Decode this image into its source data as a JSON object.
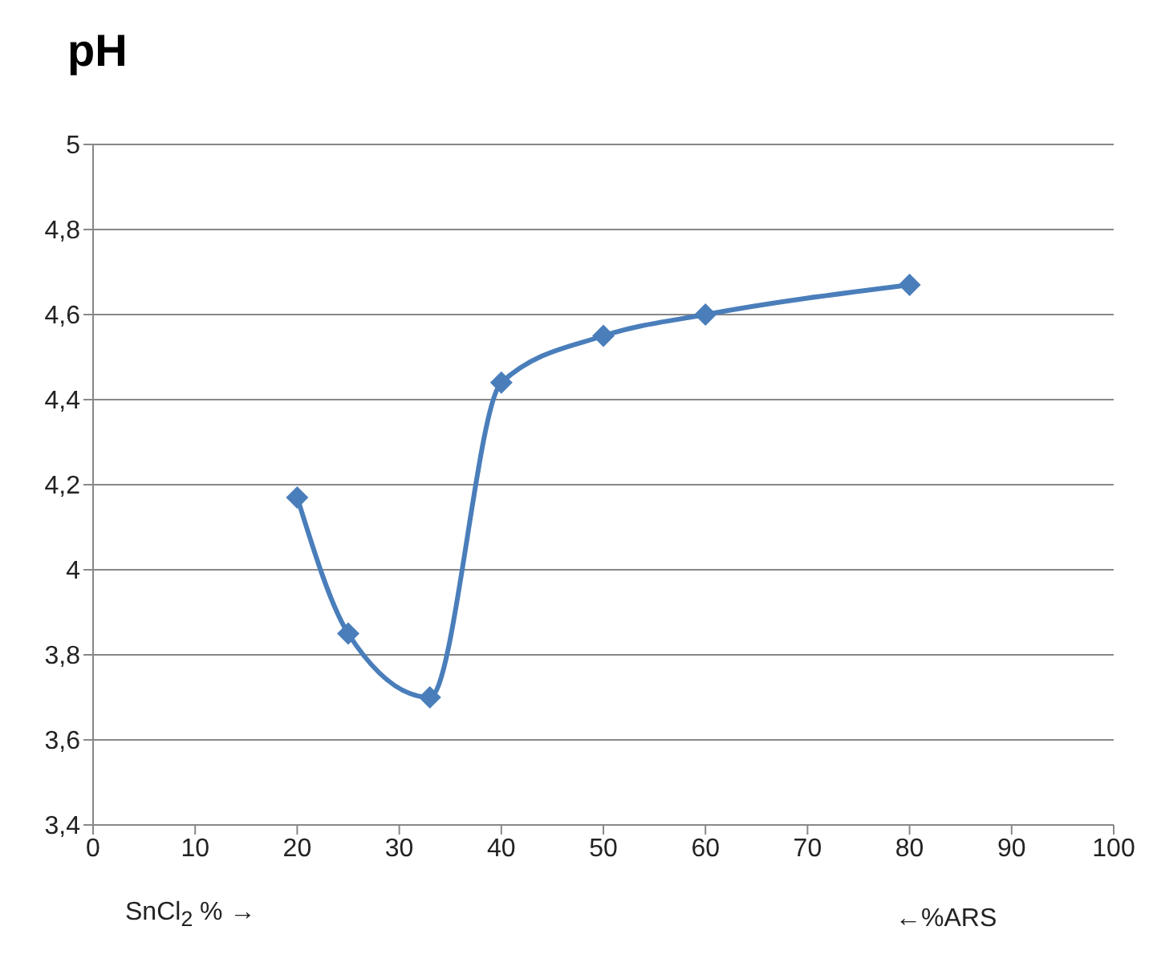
{
  "chart_data": {
    "type": "line",
    "ylabel": "pH",
    "xlabel": "SnCl$_{2}$ % →",
    "annotations": [
      "←%ARS"
    ],
    "x": [
      20,
      25,
      33,
      40,
      50,
      60,
      80
    ],
    "series": [
      {
        "color": "#4a7ebb",
        "values": [
          4.17,
          3.85,
          3.7,
          4.44,
          4.55,
          4.6,
          4.67
        ]
      }
    ],
    "xlim": [
      0,
      100
    ],
    "xticks": [
      0,
      10,
      20,
      30,
      40,
      50,
      60,
      70,
      80,
      90,
      100
    ],
    "ylim": [
      3.4,
      5
    ],
    "yticks": [
      {
        "value": 3.4,
        "label": "3,4"
      },
      {
        "value": 3.6,
        "label": "3,6"
      },
      {
        "value": 3.8,
        "label": "3,8"
      },
      {
        "value": 4,
        "label": "4"
      },
      {
        "value": 4.2,
        "label": "4,2"
      },
      {
        "value": 4.4,
        "label": "4,4"
      },
      {
        "value": 4.6,
        "label": "4,6"
      },
      {
        "value": 4.8,
        "label": "4,8"
      },
      {
        "value": 5,
        "label": "5"
      }
    ],
    "grid": "y",
    "marker": "diamond",
    "line_style": "solid",
    "legend": false
  }
}
